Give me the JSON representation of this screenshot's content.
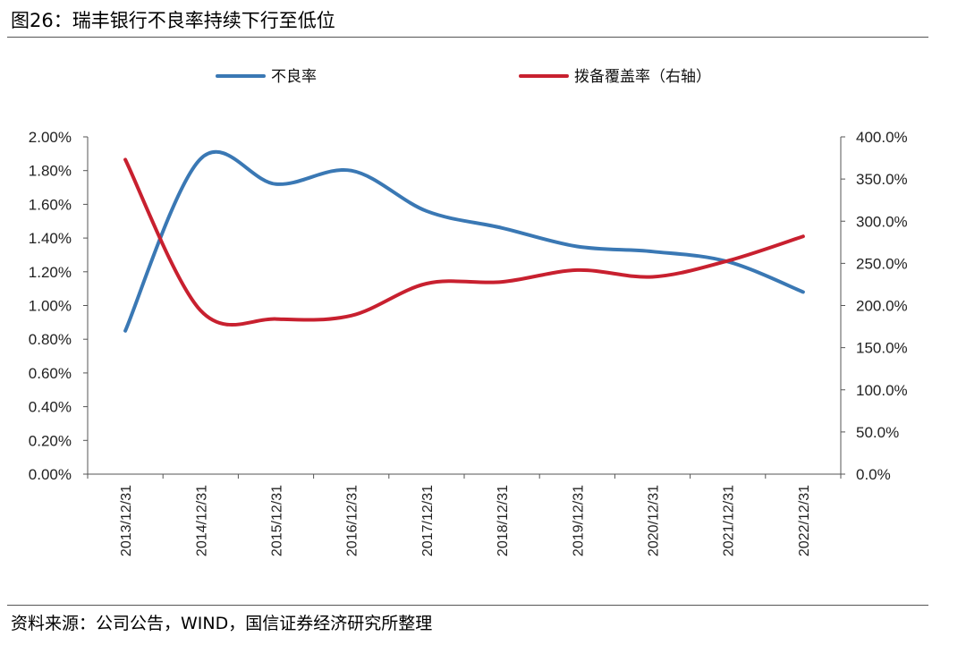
{
  "header": {
    "title": "图26：瑞丰银行不良率持续下行至低位"
  },
  "footer": {
    "source": "资料来源：公司公告，WIND，国信证券经济研究所整理"
  },
  "chart_data": {
    "type": "line",
    "categories": [
      "2013/12/31",
      "2014/12/31",
      "2015/12/31",
      "2016/12/31",
      "2017/12/31",
      "2018/12/31",
      "2019/12/31",
      "2020/12/31",
      "2021/12/31",
      "2022/12/31"
    ],
    "series": [
      {
        "name": "不良率",
        "axis": "left",
        "color": "#3a78b4",
        "values": [
          0.85,
          1.87,
          1.72,
          1.8,
          1.56,
          1.46,
          1.35,
          1.32,
          1.26,
          1.08
        ]
      },
      {
        "name": "拨备覆盖率（右轴）",
        "axis": "right",
        "color": "#c8202f",
        "values": [
          373,
          194,
          184,
          188,
          226,
          228,
          242,
          234,
          253,
          282
        ]
      }
    ],
    "left_axis": {
      "min": 0,
      "max": 2.0,
      "step": 0.2,
      "ticks": [
        "0.00%",
        "0.20%",
        "0.40%",
        "0.60%",
        "0.80%",
        "1.00%",
        "1.20%",
        "1.40%",
        "1.60%",
        "1.80%",
        "2.00%"
      ]
    },
    "right_axis": {
      "min": 0,
      "max": 400,
      "step": 50,
      "ticks": [
        "0.0%",
        "50.0%",
        "100.0%",
        "150.0%",
        "200.0%",
        "250.0%",
        "300.0%",
        "350.0%",
        "400.0%"
      ]
    },
    "grid": false,
    "legend_position": "top"
  }
}
